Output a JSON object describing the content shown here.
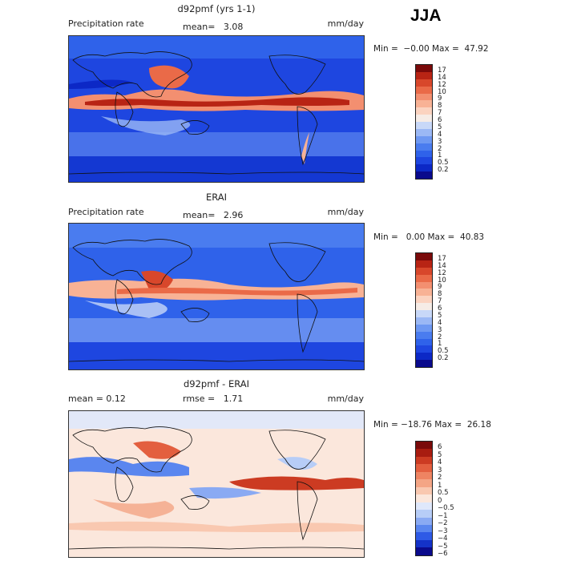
{
  "season": "JJA",
  "palette_precip": [
    "#0a0a8c",
    "#0c28c6",
    "#1e46e0",
    "#2f62ea",
    "#4a7cef",
    "#6e98f2",
    "#9bb8f5",
    "#c8d8f8",
    "#f6ece6",
    "#fbd3c0",
    "#f8b295",
    "#f38f70",
    "#ea6a48",
    "#d8472b",
    "#b82414",
    "#7a0a0a"
  ],
  "palette_diff": [
    "#0a0a8c",
    "#1432c8",
    "#2e5ae6",
    "#5a86ef",
    "#8aaaf3",
    "#b7cdf7",
    "#dfe8fb",
    "#fbe7dc",
    "#f9c8b0",
    "#f4a585",
    "#ee8462",
    "#e35f3f",
    "#cc3b22",
    "#a81c10",
    "#7a0a0a"
  ],
  "panels": [
    {
      "title": "d92pmf (yrs 1-1)",
      "left_label": "Precipitation rate",
      "mean_label": "mean=",
      "mean_value": "3.08",
      "unit": "mm/day",
      "minmax": "Min =  −0.00 Max =  47.92",
      "colorbar_labels": [
        "17",
        "14",
        "12",
        "10",
        "9",
        "8",
        "7",
        "6",
        "5",
        "4",
        "3",
        "2",
        "1",
        "0.5",
        "0.2"
      ]
    },
    {
      "title": "ERAI",
      "left_label": "Precipitation rate",
      "mean_label": "mean=",
      "mean_value": "2.96",
      "unit": "mm/day",
      "minmax": "Min =   0.00 Max =  40.83",
      "colorbar_labels": [
        "17",
        "14",
        "12",
        "10",
        "9",
        "8",
        "7",
        "6",
        "5",
        "4",
        "3",
        "2",
        "1",
        "0.5",
        "0.2"
      ]
    },
    {
      "title": "d92pmf - ERAI",
      "left_label": "mean =    0.12",
      "mean_label": "rmse =",
      "mean_value": "1.71",
      "unit": "mm/day",
      "minmax": "Min = −18.76 Max =  26.18",
      "colorbar_labels": [
        "6",
        "5",
        "4",
        "3",
        "2",
        "1",
        "0.5",
        "0",
        "−0.5",
        "−1",
        "−2",
        "−3",
        "−4",
        "−5",
        "−6"
      ]
    }
  ]
}
